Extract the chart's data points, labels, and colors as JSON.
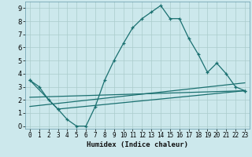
{
  "xlabel": "Humidex (Indice chaleur)",
  "bg_color": "#cce8ec",
  "grid_color": "#aacccc",
  "line_color": "#1a7070",
  "xlim": [
    -0.5,
    23.5
  ],
  "ylim": [
    -0.2,
    9.5
  ],
  "xticks": [
    0,
    1,
    2,
    3,
    4,
    5,
    6,
    7,
    8,
    9,
    10,
    11,
    12,
    13,
    14,
    15,
    16,
    17,
    18,
    19,
    20,
    21,
    22,
    23
  ],
  "yticks": [
    0,
    1,
    2,
    3,
    4,
    5,
    6,
    7,
    8,
    9
  ],
  "line1_x": [
    0,
    1,
    2,
    3,
    4,
    5,
    6,
    7,
    8,
    9,
    10,
    11,
    12,
    13,
    14,
    15,
    16,
    17,
    18,
    19,
    20,
    21,
    22,
    23
  ],
  "line1_y": [
    3.5,
    3.0,
    2.0,
    1.3,
    0.5,
    0.0,
    0.0,
    1.5,
    3.5,
    5.0,
    6.3,
    7.5,
    8.2,
    8.7,
    9.2,
    8.2,
    8.2,
    6.7,
    5.5,
    4.1,
    4.8,
    4.0,
    3.0,
    2.7
  ],
  "line2_x": [
    0,
    3,
    23
  ],
  "line2_y": [
    3.5,
    1.3,
    2.7
  ],
  "line3_x": [
    0,
    23
  ],
  "line3_y": [
    1.5,
    3.3
  ],
  "line4_x": [
    0,
    23
  ],
  "line4_y": [
    2.2,
    2.7
  ],
  "xlabel_fontsize": 6.5,
  "tick_fontsize": 5.5
}
